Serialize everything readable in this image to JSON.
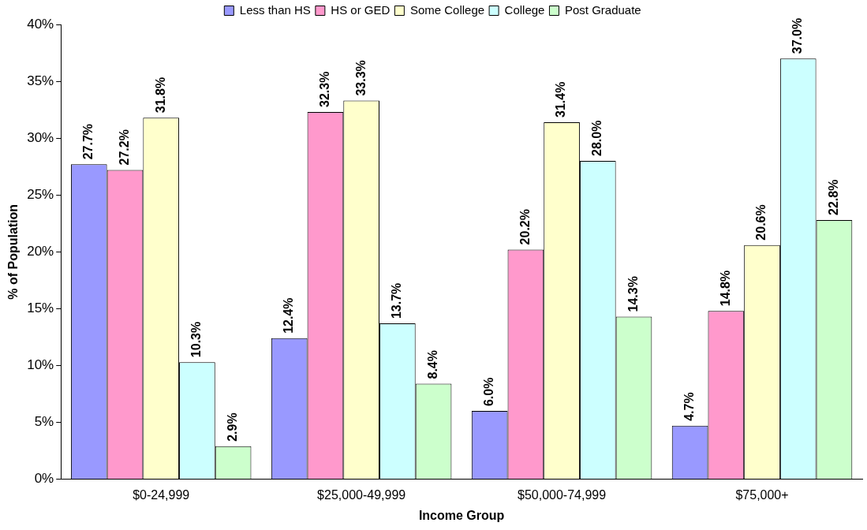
{
  "chart_data": {
    "type": "bar",
    "xlabel": "Income Group",
    "ylabel": "% of Population",
    "categories": [
      "$0-24,999",
      "$25,000-49,999",
      "$50,000-74,999",
      "$75,000+"
    ],
    "series": [
      {
        "name": "Less than HS",
        "color": "#9999ff",
        "values": [
          27.7,
          12.4,
          6.0,
          4.7
        ],
        "value_labels": [
          "27.7%",
          "12.4%",
          "6.0%",
          "4.7%"
        ]
      },
      {
        "name": "HS or GED",
        "color": "#ff99cc",
        "values": [
          27.2,
          32.3,
          20.2,
          14.8
        ],
        "value_labels": [
          "27.2%",
          "32.3%",
          "20.2%",
          "14.8%"
        ]
      },
      {
        "name": "Some College",
        "color": "#ffffcc",
        "values": [
          31.8,
          33.3,
          31.4,
          20.6
        ],
        "value_labels": [
          "31.8%",
          "33.3%",
          "31.4%",
          "20.6%"
        ]
      },
      {
        "name": "College",
        "color": "#ccffff",
        "values": [
          10.3,
          13.7,
          28.0,
          37.0
        ],
        "value_labels": [
          "10.3%",
          "13.7%",
          "28.0%",
          "37.0%"
        ]
      },
      {
        "name": "Post Graduate",
        "color": "#ccffcc",
        "values": [
          2.9,
          8.4,
          14.3,
          22.8
        ],
        "value_labels": [
          "2.9%",
          "8.4%",
          "14.3%",
          "22.8%"
        ]
      }
    ],
    "ylim": [
      0,
      40
    ],
    "yticks": [
      {
        "value": 0,
        "label": "0%"
      },
      {
        "value": 5,
        "label": "5%"
      },
      {
        "value": 10,
        "label": "10%"
      },
      {
        "value": 15,
        "label": "15%"
      },
      {
        "value": 20,
        "label": "20%"
      },
      {
        "value": 25,
        "label": "25%"
      },
      {
        "value": 30,
        "label": "30%"
      },
      {
        "value": 35,
        "label": "35%"
      },
      {
        "value": 40,
        "label": "40%"
      }
    ],
    "grid": false,
    "legend": "top"
  }
}
